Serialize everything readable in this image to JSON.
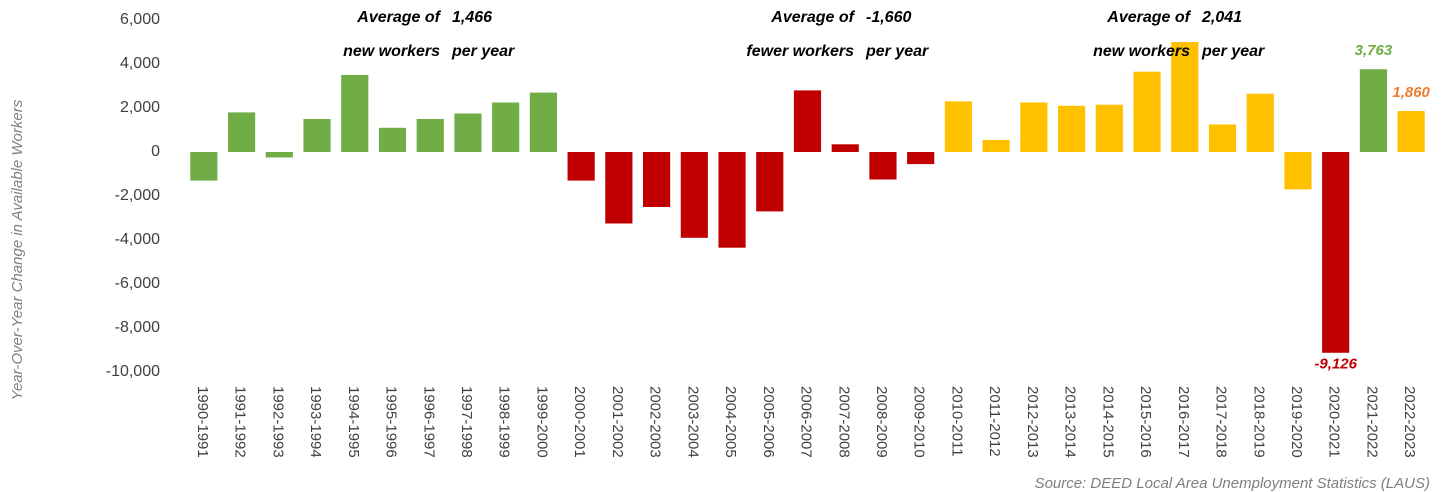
{
  "chart_data": {
    "type": "bar",
    "y_label": "Year-Over-Year Change in Available Workers",
    "source": "Source: DEED Local Area Unemployment Statistics (LAUS)",
    "categories": [
      "1990-1991",
      "1991-1992",
      "1992-1993",
      "1993-1994",
      "1994-1995",
      "1995-1996",
      "1996-1997",
      "1997-1998",
      "1998-1999",
      "1999-2000",
      "2000-2001",
      "2001-2002",
      "2002-2003",
      "2003-2004",
      "2004-2005",
      "2005-2006",
      "2006-2007",
      "2007-2008",
      "2008-2009",
      "2009-2010",
      "2010-2011",
      "2011-2012",
      "2012-2013",
      "2013-2014",
      "2014-2015",
      "2015-2016",
      "2016-2017",
      "2017-2018",
      "2018-2019",
      "2019-2020",
      "2020-2021",
      "2021-2022",
      "2022-2023"
    ],
    "values": [
      -1300,
      1800,
      -250,
      1500,
      3500,
      1100,
      1500,
      1750,
      2250,
      2700,
      -1300,
      -3250,
      -2500,
      -3900,
      -4350,
      -2700,
      2800,
      350,
      -1250,
      -550,
      2300,
      550,
      2250,
      2100,
      2150,
      3650,
      5000,
      1250,
      2650,
      -1700,
      -9126,
      3763,
      1860
    ],
    "value_labels": [
      null,
      null,
      null,
      null,
      null,
      null,
      null,
      null,
      null,
      null,
      null,
      null,
      null,
      null,
      null,
      null,
      null,
      null,
      null,
      null,
      null,
      null,
      null,
      null,
      null,
      null,
      null,
      null,
      null,
      null,
      "-9,126",
      "3,763",
      "1,860"
    ],
    "colors": [
      "#70ad47",
      "#70ad47",
      "#70ad47",
      "#70ad47",
      "#70ad47",
      "#70ad47",
      "#70ad47",
      "#70ad47",
      "#70ad47",
      "#70ad47",
      "#c00000",
      "#c00000",
      "#c00000",
      "#c00000",
      "#c00000",
      "#c00000",
      "#c00000",
      "#c00000",
      "#c00000",
      "#c00000",
      "#ffc000",
      "#ffc000",
      "#ffc000",
      "#ffc000",
      "#ffc000",
      "#ffc000",
      "#ffc000",
      "#ffc000",
      "#ffc000",
      "#ffc000",
      "#c00000",
      "#70ad47",
      "#ffc000"
    ],
    "label_colors": [
      null,
      null,
      null,
      null,
      null,
      null,
      null,
      null,
      null,
      null,
      null,
      null,
      null,
      null,
      null,
      null,
      null,
      null,
      null,
      null,
      null,
      null,
      null,
      null,
      null,
      null,
      null,
      null,
      null,
      null,
      "#c00000",
      "#70ad47",
      "#ed7d31"
    ],
    "ylim": [
      -10000,
      6000
    ],
    "yticks": [
      {
        "value": -10000,
        "label": "-10,000"
      },
      {
        "value": -8000,
        "label": "-8,000"
      },
      {
        "value": -6000,
        "label": "-6,000"
      },
      {
        "value": -4000,
        "label": "-4,000"
      },
      {
        "value": -2000,
        "label": "-2,000"
      },
      0,
      {
        "value": 2000,
        "label": "2,000"
      },
      {
        "value": 4000,
        "label": "4,000"
      },
      {
        "value": 6000,
        "label": "6,000"
      }
    ],
    "grid": false,
    "annotations": [
      [
        "Average of",
        "1,466",
        "new workers",
        "per year"
      ],
      [
        "Average of",
        "-1,660",
        "fewer workers",
        "per year"
      ],
      [
        "Average of",
        "2,041",
        "new workers",
        "per year"
      ]
    ]
  }
}
